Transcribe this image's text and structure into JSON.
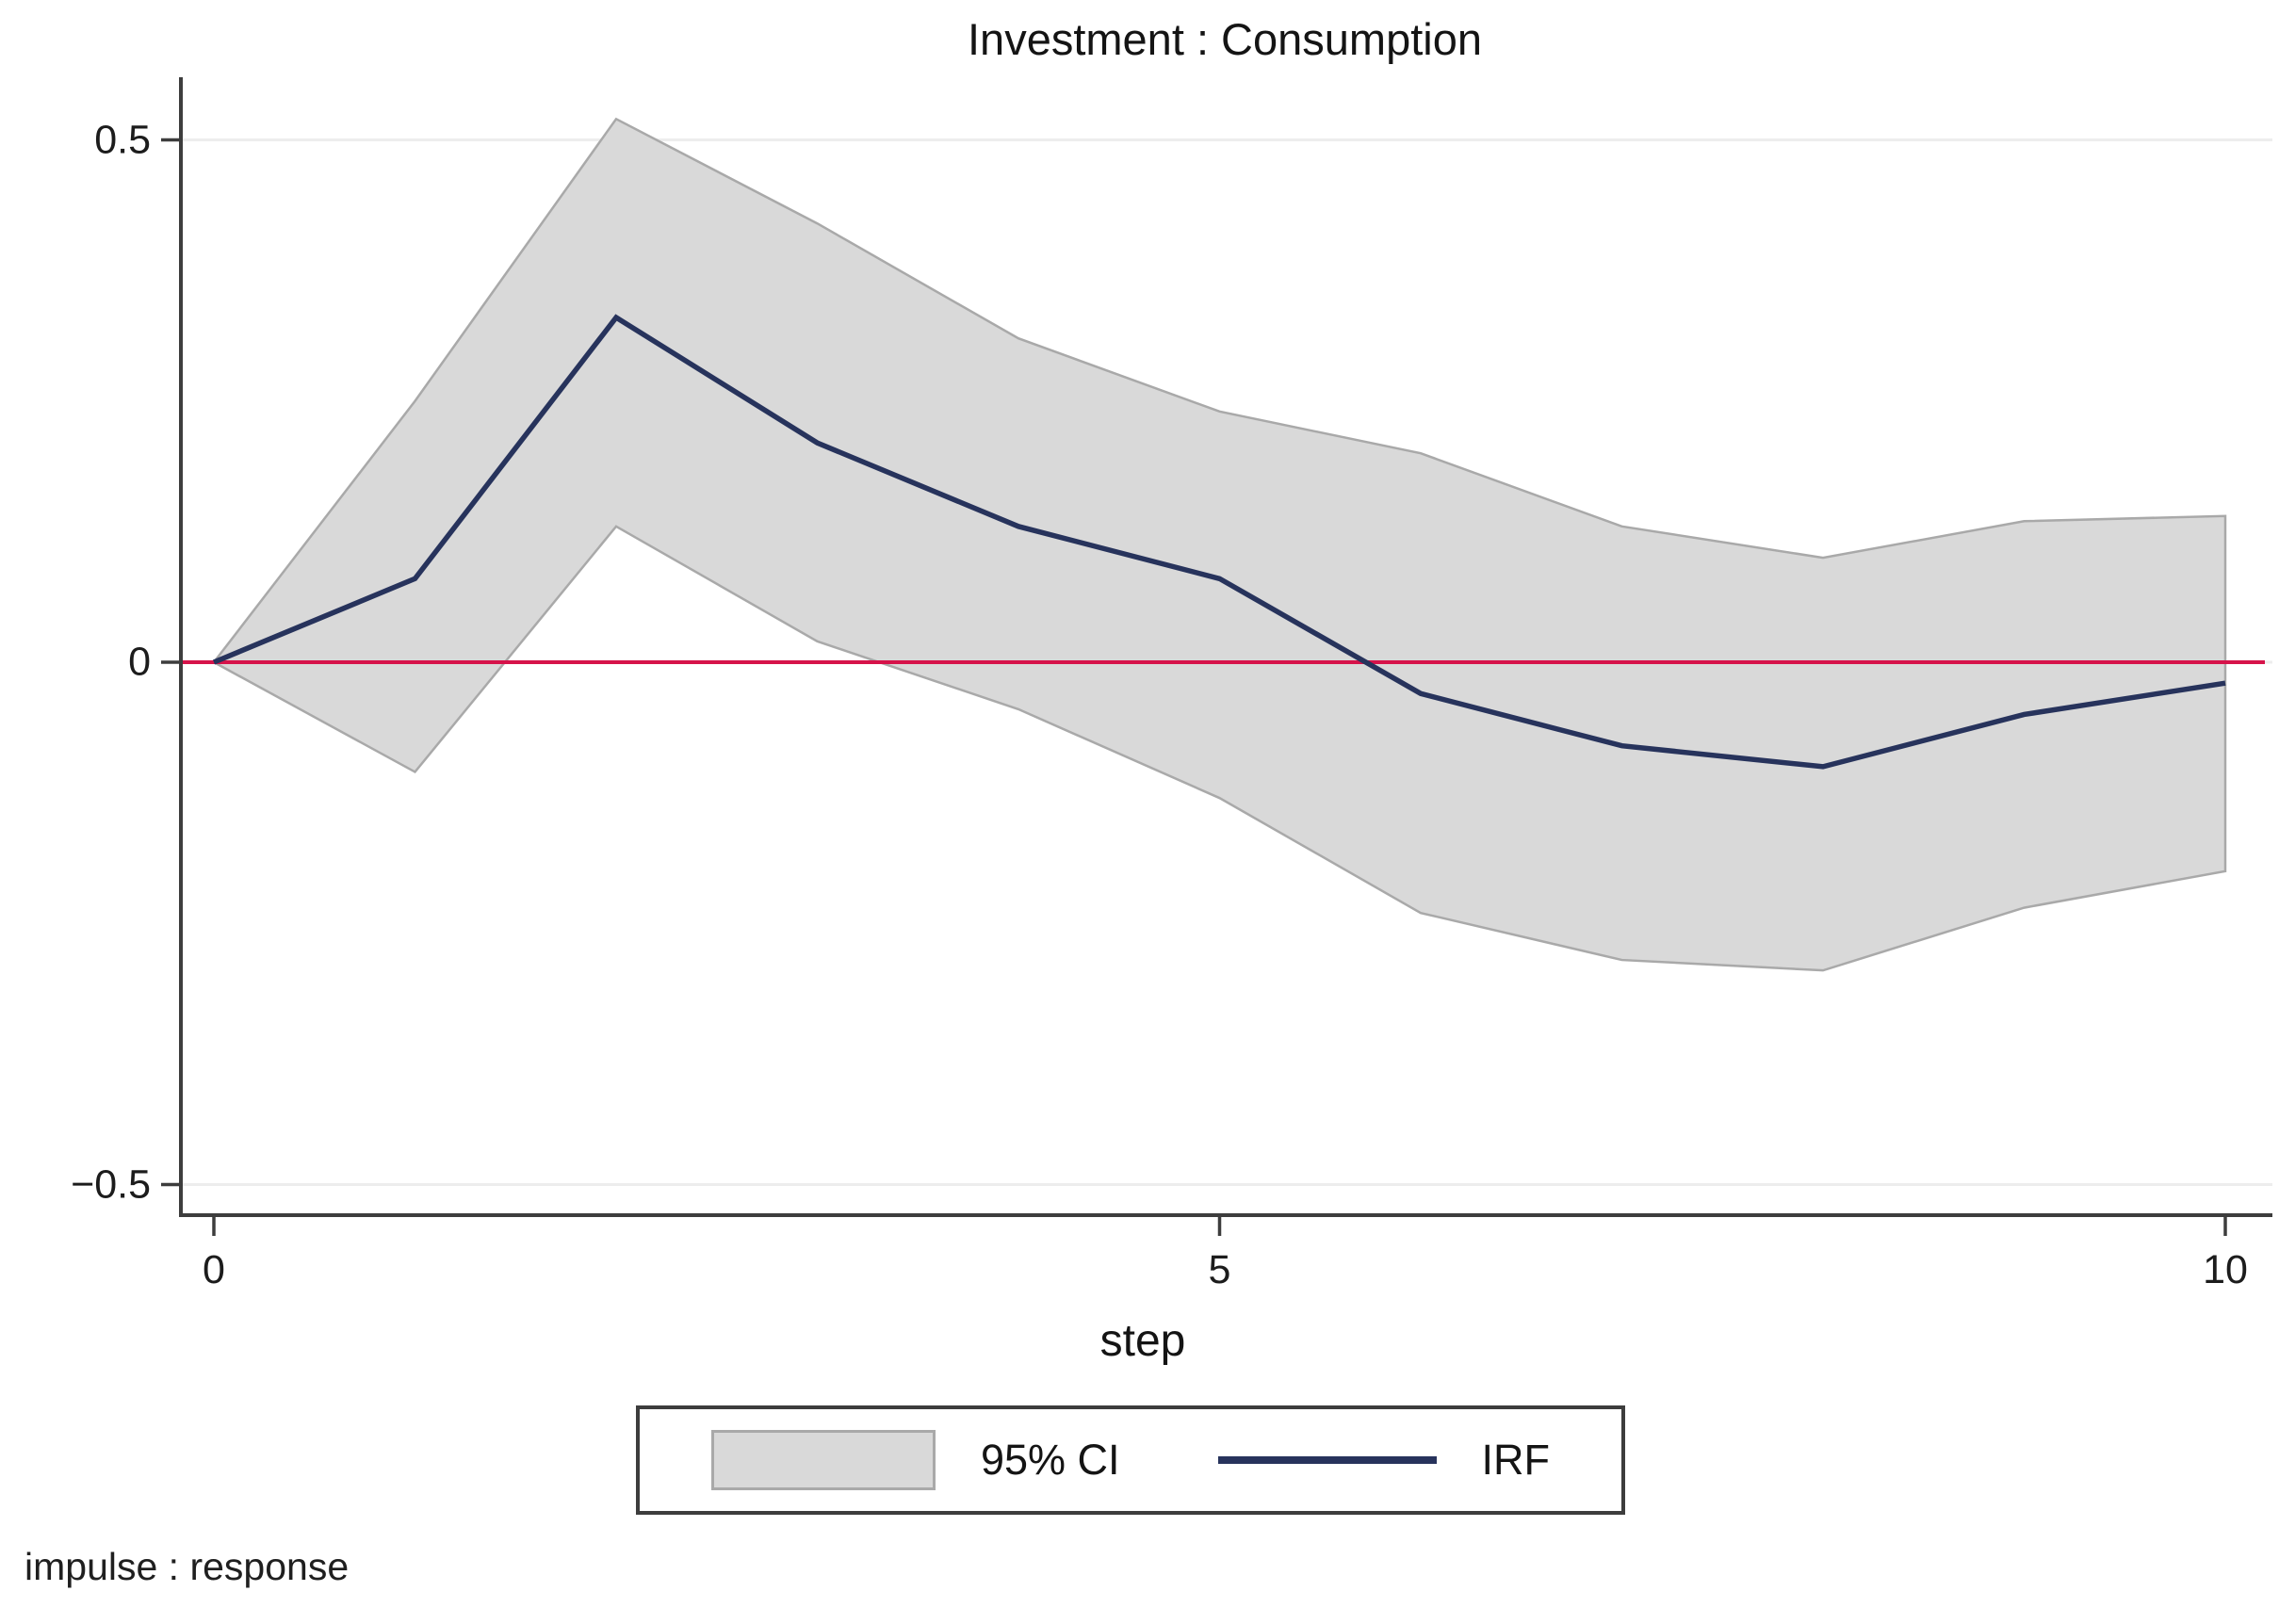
{
  "title": "Investment : Consumption",
  "xlabel": "step",
  "note": "impulse : response",
  "legend": {
    "ci_label": "95% CI",
    "irf_label": "IRF"
  },
  "colors": {
    "ci_fill": "#d9d9d9",
    "ci_border": "#a9a9a9",
    "irf_line": "#27335c",
    "zero_line": "#d6134a",
    "axis": "#3d3d3d",
    "grid": "#ededed",
    "text": "#141414"
  },
  "chart_data": {
    "type": "line",
    "title": "Investment : Consumption",
    "xlabel": "step",
    "ylabel": "",
    "x": [
      0,
      1,
      2,
      3,
      4,
      5,
      6,
      7,
      8,
      9,
      10
    ],
    "series": [
      {
        "name": "IRF",
        "values": [
          0,
          0.08,
          0.33,
          0.21,
          0.13,
          0.08,
          -0.03,
          -0.08,
          -0.1,
          -0.05,
          -0.02
        ]
      },
      {
        "name": "95% CI upper",
        "values": [
          0,
          0.25,
          0.52,
          0.42,
          0.31,
          0.24,
          0.2,
          0.13,
          0.1,
          0.135,
          0.14
        ]
      },
      {
        "name": "95% CI lower",
        "values": [
          0,
          -0.105,
          0.13,
          0.02,
          -0.045,
          -0.13,
          -0.24,
          -0.285,
          -0.295,
          -0.235,
          -0.2
        ]
      }
    ],
    "band": {
      "upper_series": 1,
      "lower_series": 2,
      "label": "95% CI"
    },
    "zero_reference_line": 0,
    "xlim": [
      0,
      10
    ],
    "ylim": [
      -0.55,
      0.55
    ],
    "x_ticks": [
      {
        "v": 0,
        "label": "0"
      },
      {
        "v": 5,
        "label": "5"
      },
      {
        "v": 10,
        "label": "10"
      }
    ],
    "y_ticks": [
      {
        "v": 0.5,
        "label": "0.5"
      },
      {
        "v": 0,
        "label": "0"
      },
      {
        "v": -0.5,
        "label": "−0.5"
      }
    ],
    "grid": "horizontal",
    "legend_position": "bottom"
  }
}
